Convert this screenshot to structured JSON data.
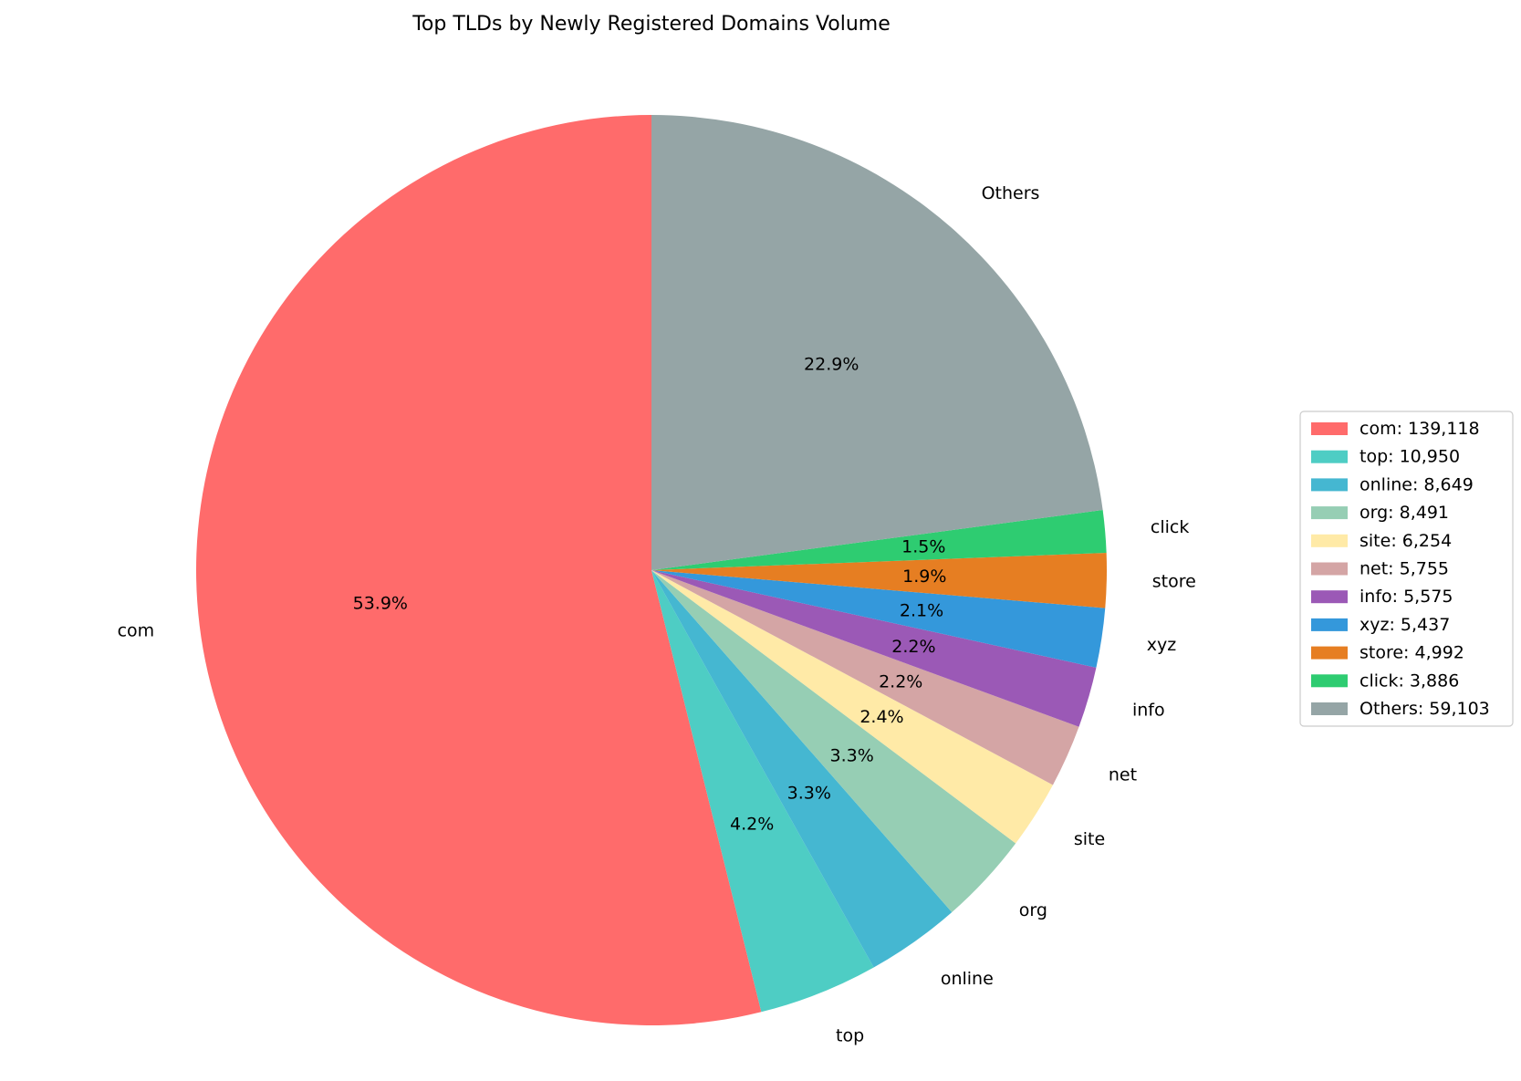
{
  "chart_data": {
    "type": "pie",
    "title": "Top TLDs by Newly Registered Domains Volume",
    "start_angle_deg": 90,
    "direction": "counterclockwise",
    "legend_position": "center-right",
    "slices": [
      {
        "label": "com",
        "value": 139118,
        "pct_label": "53.9%",
        "legend": "com: 139,118",
        "color": "#FF6B6B"
      },
      {
        "label": "top",
        "value": 10950,
        "pct_label": "4.2%",
        "legend": "top: 10,950",
        "color": "#4ECDC4"
      },
      {
        "label": "online",
        "value": 8649,
        "pct_label": "3.3%",
        "legend": "online: 8,649",
        "color": "#45B7D1"
      },
      {
        "label": "org",
        "value": 8491,
        "pct_label": "3.3%",
        "legend": "org: 8,491",
        "color": "#96CEB4"
      },
      {
        "label": "site",
        "value": 6254,
        "pct_label": "2.4%",
        "legend": "site: 6,254",
        "color": "#FFEAA7"
      },
      {
        "label": "net",
        "value": 5755,
        "pct_label": "2.2%",
        "legend": "net: 5,755",
        "color": "#D4A5A5"
      },
      {
        "label": "info",
        "value": 5575,
        "pct_label": "2.2%",
        "legend": "info: 5,575",
        "color": "#9B59B6"
      },
      {
        "label": "xyz",
        "value": 5437,
        "pct_label": "2.1%",
        "legend": "xyz: 5,437",
        "color": "#3498DB"
      },
      {
        "label": "store",
        "value": 4992,
        "pct_label": "1.9%",
        "legend": "store: 4,992",
        "color": "#E67E22"
      },
      {
        "label": "click",
        "value": 3886,
        "pct_label": "1.5%",
        "legend": "click: 3,886",
        "color": "#2ECC71"
      },
      {
        "label": "Others",
        "value": 59103,
        "pct_label": "22.9%",
        "legend": "Others: 59,103",
        "color": "#95A5A6"
      }
    ]
  }
}
